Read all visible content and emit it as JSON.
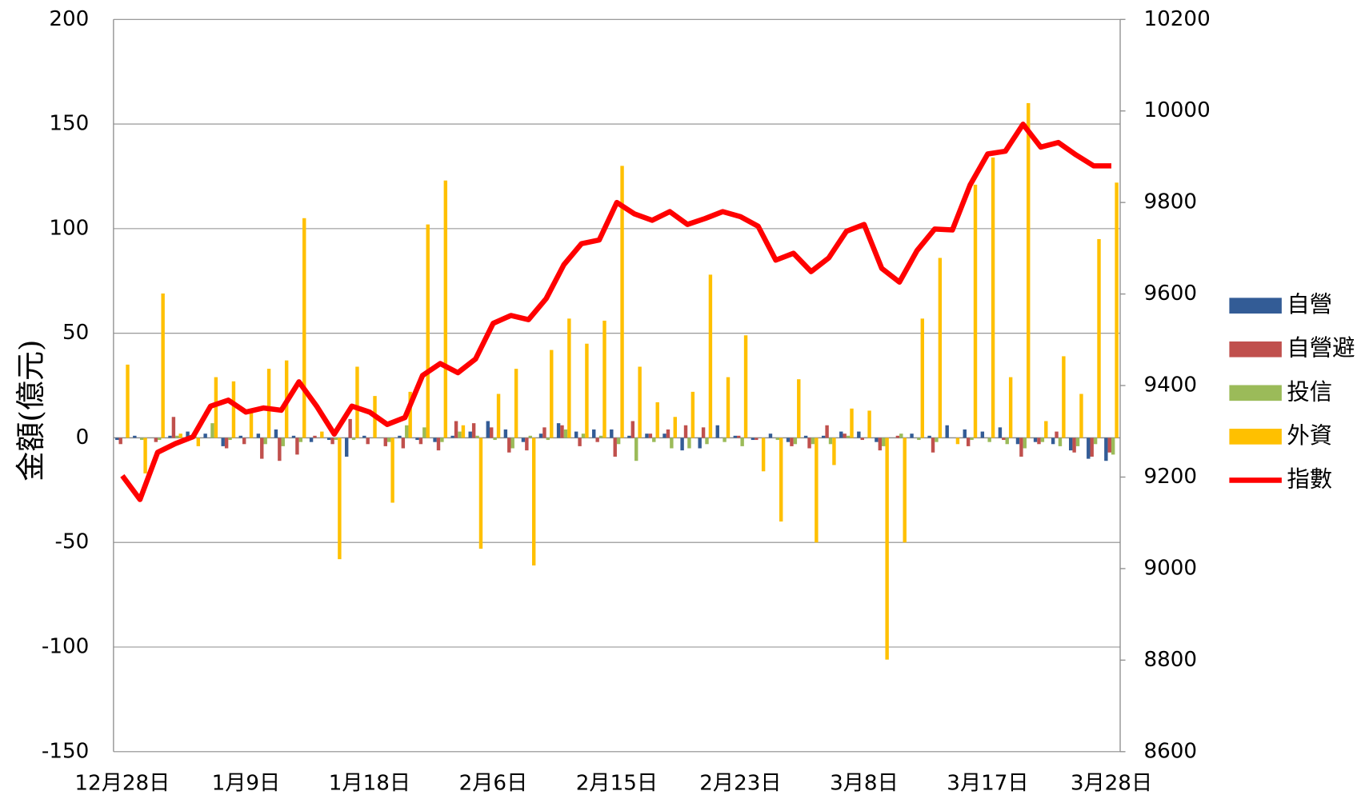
{
  "chart_data": {
    "type": "bar",
    "ylabel": "金額(億元)",
    "categories": [
      "12月28日",
      null,
      null,
      null,
      null,
      null,
      null,
      "1月9日",
      null,
      null,
      null,
      null,
      null,
      null,
      "1月18日",
      null,
      null,
      null,
      null,
      null,
      null,
      "2月6日",
      null,
      null,
      null,
      null,
      null,
      null,
      "2月15日",
      null,
      null,
      null,
      null,
      null,
      null,
      "2月23日",
      null,
      null,
      null,
      null,
      null,
      null,
      "3月8日",
      null,
      null,
      null,
      null,
      null,
      null,
      "3月17日",
      null,
      null,
      null,
      null,
      null,
      null,
      "3月28日"
    ],
    "ylim": [
      -150,
      200
    ],
    "yticks": [
      -150,
      -100,
      -50,
      0,
      50,
      100,
      150,
      200
    ],
    "y2lim": [
      8600,
      10200
    ],
    "y2ticks": [
      8600,
      8800,
      9000,
      9200,
      9400,
      9600,
      9800,
      10000,
      10200
    ],
    "grid": true,
    "legend": "right",
    "series": [
      {
        "name": "自營",
        "color": "#335c96",
        "values": [
          -1,
          1,
          0,
          1,
          3,
          2,
          -4,
          1,
          2,
          4,
          1,
          -2,
          -1,
          -9,
          1,
          0,
          1,
          -1,
          -2,
          1,
          3,
          8,
          4,
          -2,
          2,
          7,
          3,
          4,
          4,
          1,
          2,
          2,
          -6,
          -5,
          6,
          1,
          -1,
          2,
          -2,
          1,
          1,
          3,
          3,
          -2,
          0,
          2,
          1,
          6,
          4,
          3,
          5,
          -3,
          -2,
          -3,
          -6,
          -10,
          -11
        ]
      },
      {
        "name": "自營避",
        "color": "#c0504d",
        "values": [
          -3,
          0,
          -2,
          10,
          1,
          0,
          -5,
          -3,
          -10,
          -11,
          -8,
          1,
          -3,
          9,
          -3,
          -4,
          -5,
          -3,
          -6,
          8,
          7,
          5,
          -7,
          -6,
          5,
          6,
          -4,
          -2,
          -9,
          8,
          2,
          4,
          6,
          5,
          0,
          1,
          -1,
          0,
          -4,
          -5,
          6,
          2,
          -1,
          -6,
          1,
          0,
          -7,
          0,
          -4,
          0,
          -1,
          -9,
          -3,
          3,
          -7,
          -9,
          -7
        ]
      },
      {
        "name": "投信",
        "color": "#9bbb59",
        "values": [
          0,
          -1,
          -1,
          1,
          1,
          7,
          -1,
          0,
          -3,
          -4,
          -2,
          0,
          -1,
          -1,
          0,
          -2,
          6,
          5,
          -2,
          3,
          1,
          -1,
          -5,
          1,
          -1,
          4,
          2,
          1,
          -3,
          -11,
          -2,
          -5,
          -5,
          -3,
          -2,
          -4,
          0,
          -1,
          -3,
          -3,
          -3,
          1,
          0,
          -4,
          2,
          -1,
          -2,
          0,
          -1,
          -2,
          -3,
          -5,
          -2,
          -4,
          -4,
          -3,
          -8
        ]
      },
      {
        "name": "外資",
        "color": "#ffc000",
        "values": [
          35,
          -17,
          69,
          2,
          -4,
          29,
          27,
          12,
          33,
          37,
          105,
          3,
          -58,
          34,
          20,
          -31,
          22,
          102,
          123,
          6,
          -53,
          21,
          33,
          -61,
          42,
          57,
          45,
          56,
          130,
          34,
          17,
          10,
          22,
          78,
          29,
          49,
          -16,
          -40,
          28,
          -50,
          -13,
          14,
          13,
          -106,
          -50,
          57,
          86,
          -3,
          121,
          134,
          29,
          160,
          8,
          39,
          21,
          95,
          122
        ]
      },
      {
        "name": "指數",
        "color": "#ff0000",
        "type": "line",
        "axis": "y2",
        "values": [
          9203,
          9151,
          9254,
          9273,
          9288,
          9355,
          9368,
          9342,
          9351,
          9346,
          9408,
          9355,
          9294,
          9355,
          9342,
          9315,
          9330,
          9422,
          9448,
          9428,
          9458,
          9536,
          9553,
          9544,
          9590,
          9664,
          9710,
          9718,
          9800,
          9775,
          9761,
          9780,
          9752,
          9765,
          9780,
          9769,
          9748,
          9674,
          9689,
          9649,
          9679,
          9737,
          9752,
          9656,
          9626,
          9695,
          9742,
          9740,
          9838,
          9906,
          9912,
          9971,
          9921,
          9931,
          9904,
          9880,
          9880
        ]
      }
    ]
  }
}
